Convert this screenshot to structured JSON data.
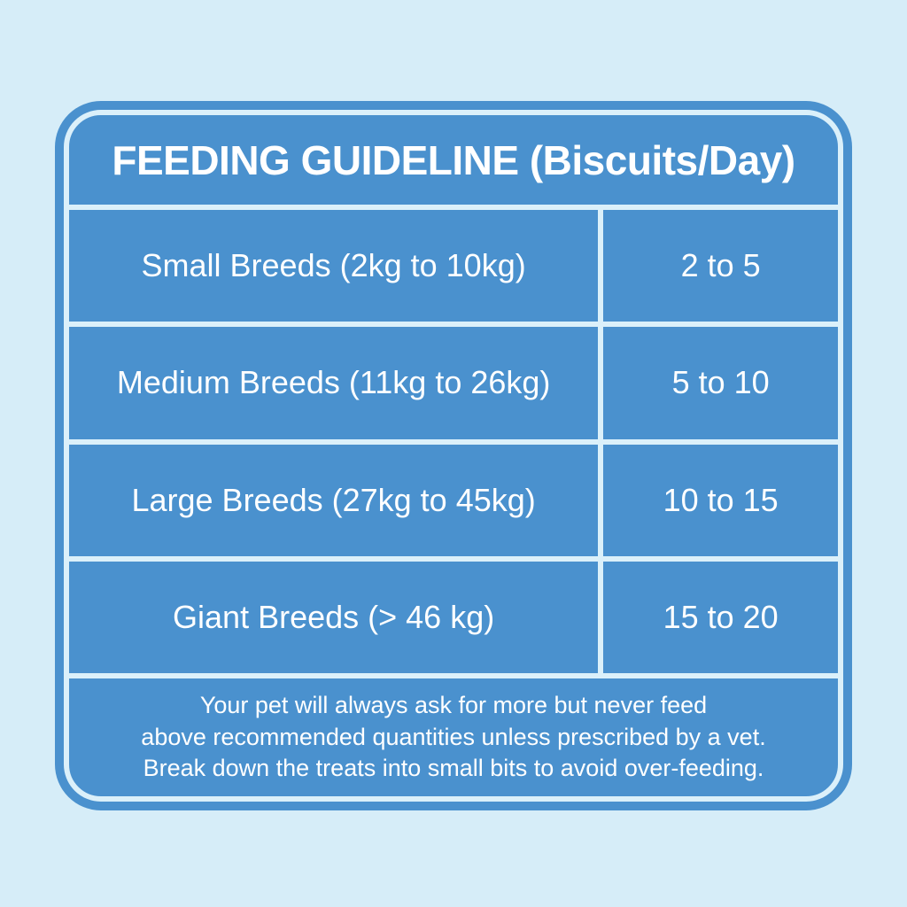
{
  "colors": {
    "page_background": "#d6edf8",
    "card_blue": "#4a91ce",
    "grid_line": "#dbf0fa",
    "text": "#ffffff"
  },
  "card": {
    "title": "FEEDING GUIDELINE (Biscuits/Day)",
    "rows": [
      {
        "breed": "Small Breeds (2kg to 10kg)",
        "amount": "2 to 5"
      },
      {
        "breed": "Medium Breeds (11kg to 26kg)",
        "amount": "5 to 10"
      },
      {
        "breed": "Large Breeds (27kg to 45kg)",
        "amount": "10 to 15"
      },
      {
        "breed": "Giant Breeds (> 46 kg)",
        "amount": "15 to 20"
      }
    ],
    "footer_lines": [
      "Your pet will always ask for more but never feed",
      "above recommended quantities unless prescribed by a vet.",
      "Break down the treats into small bits to avoid over-feeding."
    ]
  },
  "chart_data": {
    "type": "table",
    "title": "FEEDING GUIDELINE (Biscuits/Day)",
    "rows": [
      {
        "breed_size": "Small Breeds",
        "weight_range": "2kg to 10kg",
        "biscuits_per_day": "2 to 5"
      },
      {
        "breed_size": "Medium Breeds",
        "weight_range": "11kg to 26kg",
        "biscuits_per_day": "5 to 10"
      },
      {
        "breed_size": "Large Breeds",
        "weight_range": "27kg to 45kg",
        "biscuits_per_day": "10 to 15"
      },
      {
        "breed_size": "Giant Breeds",
        "weight_range": "> 46 kg",
        "biscuits_per_day": "15 to 20"
      }
    ],
    "note": "Your pet will always ask for more but never feed above recommended quantities unless prescribed by a vet. Break down the treats into small bits to avoid over-feeding.",
    "layout": {
      "columns": 2,
      "header_row": true,
      "footer_note": true,
      "grid": "on"
    }
  }
}
